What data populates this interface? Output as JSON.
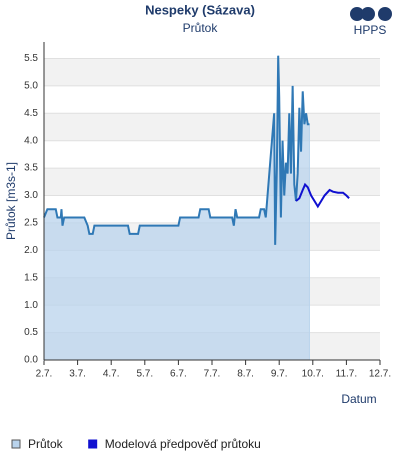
{
  "chart_data": {
    "type": "line",
    "title": "Nespeky (Sázava)",
    "subtitle": "Průtok",
    "logo": "HPPS",
    "y_label": "Průtok [m3s-1]",
    "x_label": "Datum",
    "xlim": [
      2,
      12
    ],
    "ylim": [
      0,
      5.8
    ],
    "grid": true,
    "legend": "bottom",
    "xticks": [
      {
        "value": 2,
        "label": "2.7."
      },
      {
        "value": 3,
        "label": "3.7."
      },
      {
        "value": 4,
        "label": "4.7."
      },
      {
        "value": 5,
        "label": "5.7."
      },
      {
        "value": 6,
        "label": "6.7."
      },
      {
        "value": 7,
        "label": "7.7."
      },
      {
        "value": 8,
        "label": "8.7."
      },
      {
        "value": 9,
        "label": "9.7."
      },
      {
        "value": 10,
        "label": "10.7."
      },
      {
        "value": 11,
        "label": "11.7."
      },
      {
        "value": 12,
        "label": "12.7."
      }
    ],
    "yticks": [
      {
        "value": 0,
        "label": "0.0"
      },
      0.5,
      {
        "value": 1,
        "label": "1.0"
      },
      1.5,
      {
        "value": 2,
        "label": "2.0"
      },
      2.5,
      {
        "value": 3,
        "label": "3.0"
      },
      3.5,
      {
        "value": 4,
        "label": "4.0"
      },
      4.5,
      {
        "value": 5,
        "label": "5.0"
      },
      5.5
    ],
    "series": [
      {
        "name": "Průtok",
        "color": "#2f78b5",
        "fill": "#b9d3ec",
        "x": [
          2,
          2.1,
          2.35,
          2.4,
          2.5,
          2.52,
          2.55,
          2.6,
          3.2,
          3.3,
          3.35,
          3.45,
          3.5,
          4.5,
          4.55,
          4.8,
          4.85,
          6.0,
          6.05,
          6.6,
          6.65,
          6.9,
          6.95,
          7.6,
          7.65,
          7.7,
          7.75,
          8.4,
          8.45,
          8.55,
          8.6,
          8.85,
          8.88,
          8.93,
          8.97,
          9.0,
          9.05,
          9.1,
          9.15,
          9.2,
          9.25,
          9.3,
          9.35,
          9.4,
          9.45,
          9.5,
          9.55,
          9.6,
          9.65,
          9.7,
          9.75,
          9.8,
          9.85,
          9.9
        ],
        "values": [
          2.6,
          2.75,
          2.75,
          2.6,
          2.6,
          2.75,
          2.45,
          2.6,
          2.6,
          2.45,
          2.3,
          2.3,
          2.45,
          2.45,
          2.3,
          2.3,
          2.45,
          2.45,
          2.6,
          2.6,
          2.75,
          2.75,
          2.6,
          2.6,
          2.45,
          2.75,
          2.6,
          2.6,
          2.75,
          2.75,
          2.6,
          4.5,
          2.1,
          3.5,
          5.55,
          4.8,
          2.6,
          4.0,
          3.0,
          3.6,
          3.4,
          4.5,
          3.4,
          5.0,
          3.2,
          2.9,
          3.4,
          4.6,
          3.8,
          4.9,
          4.3,
          4.5,
          4.3,
          4.3
        ]
      },
      {
        "name": "Modelová předpověď průtoku",
        "color": "#1010d0",
        "x": [
          9.5,
          9.6,
          9.7,
          9.77,
          9.85,
          9.95,
          10.05,
          10.15,
          10.25,
          10.35,
          10.5,
          10.6,
          10.75,
          10.9,
          11.0,
          11.08
        ],
        "values": [
          2.9,
          2.95,
          3.1,
          3.2,
          3.15,
          3.0,
          2.9,
          2.8,
          2.9,
          3.0,
          3.1,
          3.07,
          3.05,
          3.05,
          3.0,
          2.95
        ]
      }
    ]
  }
}
